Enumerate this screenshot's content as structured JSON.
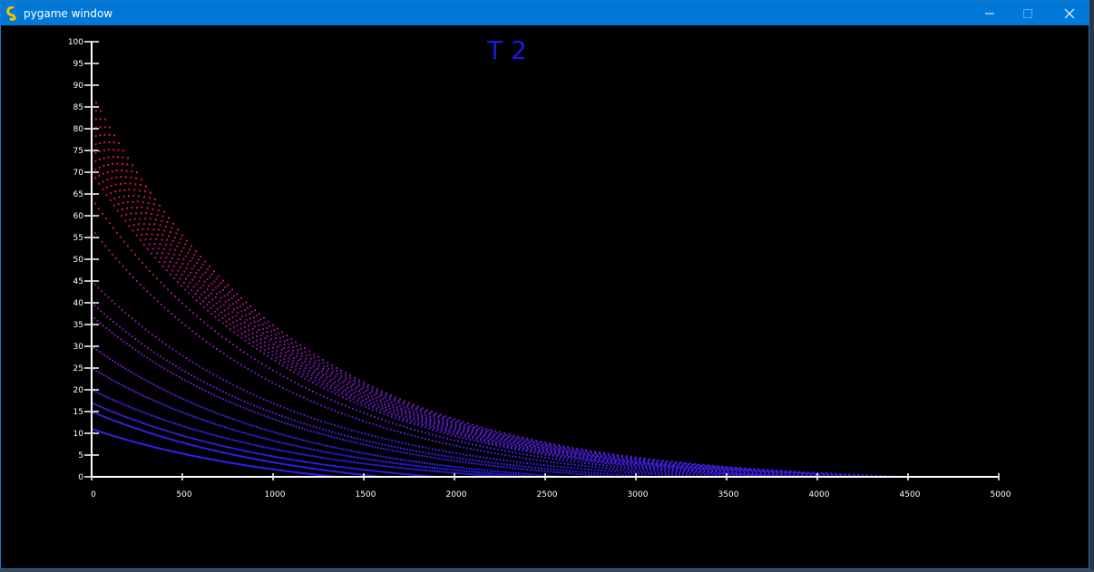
{
  "window": {
    "title": "pygame window",
    "icon": "pygame-snake-icon",
    "controls": [
      "minimize-icon",
      "maximize-icon",
      "close-icon"
    ]
  },
  "chart_data": {
    "type": "scatter",
    "title": "T 2",
    "xlabel": "",
    "ylabel": "",
    "xlim": [
      0,
      5000
    ],
    "ylim": [
      0,
      100
    ],
    "x_ticks": [
      0,
      500,
      1000,
      1500,
      2000,
      2500,
      3000,
      3500,
      4000,
      4500,
      5000
    ],
    "y_ticks": [
      0,
      5,
      10,
      15,
      20,
      25,
      30,
      35,
      40,
      45,
      50,
      55,
      60,
      65,
      70,
      75,
      80,
      85,
      90,
      95,
      100
    ],
    "grid": false,
    "legend": "none",
    "axis_color": "#ffffff",
    "title_color": "#1a1ae0",
    "color_low": "#2a1ef0",
    "color_high": "#e0103c",
    "series": [
      {
        "y0": 88,
        "x_end": 4500
      },
      {
        "y0": 86,
        "x_end": 4420
      },
      {
        "y0": 84,
        "x_end": 4350
      },
      {
        "y0": 82,
        "x_end": 4250
      },
      {
        "y0": 80,
        "x_end": 4150
      },
      {
        "y0": 78,
        "x_end": 4100
      },
      {
        "y0": 76,
        "x_end": 4000
      },
      {
        "y0": 74,
        "x_end": 3900
      },
      {
        "y0": 72,
        "x_end": 3820
      },
      {
        "y0": 70,
        "x_end": 3720
      },
      {
        "y0": 64,
        "x_end": 3600
      },
      {
        "y0": 57,
        "x_end": 3450
      },
      {
        "y0": 45,
        "x_end": 3350
      },
      {
        "y0": 40,
        "x_end": 3100
      },
      {
        "y0": 37,
        "x_end": 2900
      },
      {
        "y0": 30,
        "x_end": 2600
      },
      {
        "y0": 25,
        "x_end": 2450
      },
      {
        "y0": 20,
        "x_end": 2300
      },
      {
        "y0": 17,
        "x_end": 1900
      },
      {
        "y0": 15,
        "x_end": 1600
      },
      {
        "y0": 11,
        "x_end": 1350
      }
    ]
  }
}
